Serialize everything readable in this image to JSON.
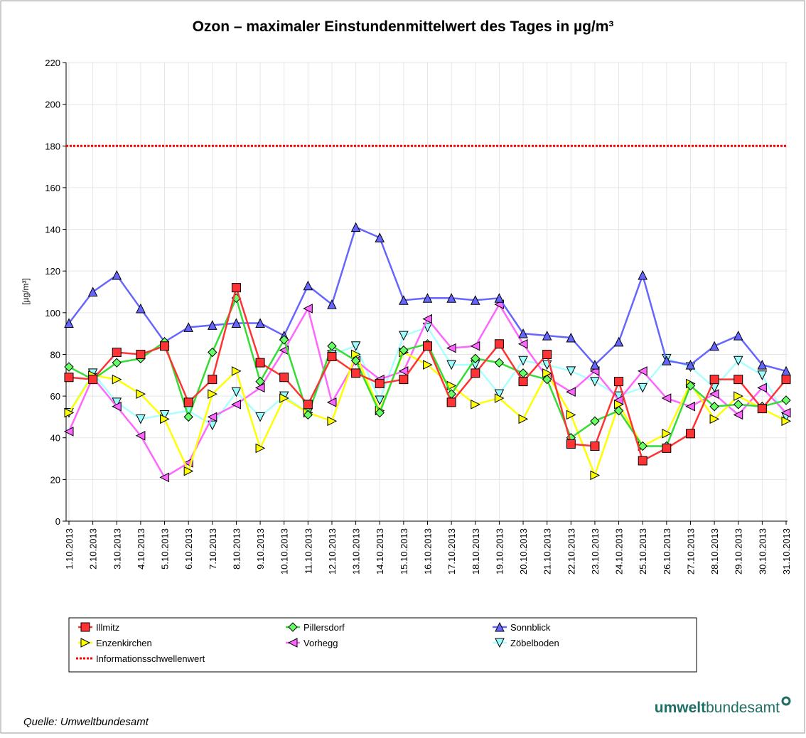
{
  "chart_data": {
    "type": "line",
    "title": "Ozon – maximaler Einstundenmittelwert des Tages in µg/m³",
    "y_label": "[µg/m³]",
    "categories": [
      "1.10.2013",
      "2.10.2013",
      "3.10.2013",
      "4.10.2013",
      "5.10.2013",
      "6.10.2013",
      "7.10.2013",
      "8.10.2013",
      "9.10.2013",
      "10.10.2013",
      "11.10.2013",
      "12.10.2013",
      "13.10.2013",
      "14.10.2013",
      "15.10.2013",
      "16.10.2013",
      "17.10.2013",
      "18.10.2013",
      "19.10.2013",
      "20.10.2013",
      "21.10.2013",
      "22.10.2013",
      "23.10.2013",
      "24.10.2013",
      "25.10.2013",
      "26.10.2013",
      "27.10.2013",
      "28.10.2013",
      "29.10.2013",
      "30.10.2013",
      "31.10.2013"
    ],
    "series": [
      {
        "name": "Illmitz",
        "color": "#ff3333",
        "fill": "#ff3333",
        "marker": "square",
        "values": [
          69,
          68,
          81,
          80,
          84,
          57,
          68,
          112,
          76,
          69,
          56,
          79,
          71,
          66,
          68,
          84,
          57,
          71,
          85,
          67,
          80,
          37,
          36,
          67,
          29,
          35,
          42,
          68,
          68,
          54,
          68
        ]
      },
      {
        "name": "Pillersdorf",
        "color": "#33dd33",
        "fill": "#66ff66",
        "marker": "diamond",
        "values": [
          74,
          68,
          76,
          78,
          86,
          50,
          81,
          107,
          67,
          87,
          51,
          84,
          77,
          52,
          82,
          85,
          61,
          78,
          76,
          71,
          68,
          40,
          48,
          53,
          36,
          36,
          65,
          55,
          56,
          55,
          58
        ]
      },
      {
        "name": "Sonnblick",
        "color": "#6666ff",
        "fill": "#6666ff",
        "marker": "triangle-up",
        "values": [
          95,
          110,
          118,
          102,
          86,
          93,
          94,
          95,
          95,
          89,
          113,
          104,
          141,
          136,
          106,
          107,
          107,
          106,
          107,
          90,
          89,
          88,
          75,
          86,
          118,
          77,
          75,
          84,
          89,
          75,
          72
        ]
      },
      {
        "name": "Enzenkirchen",
        "color": "#ffff00",
        "fill": "#ffff00",
        "marker": "triangle-right",
        "values": [
          52,
          70,
          68,
          61,
          49,
          24,
          61,
          72,
          35,
          59,
          52,
          48,
          80,
          53,
          81,
          75,
          65,
          56,
          59,
          49,
          71,
          51,
          22,
          56,
          36,
          42,
          66,
          49,
          60,
          54,
          48
        ]
      },
      {
        "name": "Vorhegg",
        "color": "#ff66ff",
        "fill": "#ff66ff",
        "marker": "triangle-left",
        "values": [
          43,
          69,
          55,
          41,
          21,
          28,
          50,
          56,
          64,
          82,
          102,
          57,
          77,
          68,
          72,
          97,
          83,
          84,
          104,
          85,
          69,
          62,
          72,
          58,
          72,
          59,
          55,
          61,
          51,
          64,
          52
        ]
      },
      {
        "name": "Zöbelboden",
        "color": "#aaffff",
        "fill": "#99ffff",
        "marker": "triangle-down",
        "values": [
          52,
          71,
          57,
          49,
          51,
          53,
          46,
          62,
          50,
          60,
          52,
          80,
          84,
          58,
          89,
          93,
          75,
          75,
          61,
          77,
          75,
          72,
          67,
          60,
          64,
          78,
          74,
          64,
          77,
          70,
          50
        ]
      }
    ],
    "threshold": {
      "name": "Informationsschwellenwert",
      "value": 180,
      "color": "#ff0000"
    },
    "ylim": [
      0,
      220
    ],
    "yticks": [
      0,
      20,
      40,
      60,
      80,
      100,
      120,
      140,
      160,
      180,
      200,
      220
    ],
    "grid": true,
    "source": "Quelle: Umweltbundesamt",
    "logo": {
      "bold": "umwelt",
      "regular": "bundesamt"
    }
  }
}
